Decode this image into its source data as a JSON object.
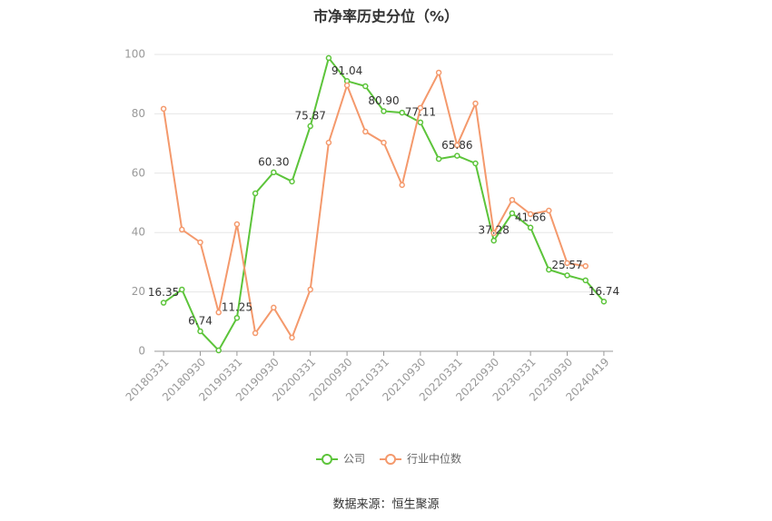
{
  "chart_data": {
    "type": "line",
    "title": "市净率历史分位（%）",
    "categories": [
      "20180331",
      null,
      "20180930",
      null,
      "20190331",
      null,
      "20190930",
      null,
      "20200331",
      null,
      "20200930",
      null,
      "20210331",
      null,
      "20210930",
      null,
      "20220331",
      null,
      "20220930",
      null,
      "20230331",
      null,
      "20230930",
      null,
      "20240419"
    ],
    "series": [
      {
        "name": "公司",
        "color": "#5cc43a",
        "values": [
          16.35,
          20.8,
          6.74,
          0.3,
          11.25,
          53.2,
          60.3,
          57.2,
          75.87,
          98.8,
          91.04,
          89.3,
          80.9,
          80.4,
          77.11,
          64.8,
          65.86,
          63.3,
          37.28,
          46.5,
          41.66,
          27.5,
          25.57,
          23.9,
          16.74
        ],
        "value_labels": [
          "16.35",
          null,
          "6.74",
          null,
          "11.25",
          null,
          "60.30",
          null,
          "75.87",
          null,
          "91.04",
          null,
          "80.90",
          null,
          "77.11",
          null,
          "65.86",
          null,
          "37.28",
          null,
          "41.66",
          null,
          "25.57",
          null,
          "16.74"
        ]
      },
      {
        "name": "行业中位数",
        "color": "#f4996c",
        "values": [
          81.7,
          41,
          36.7,
          13.1,
          42.8,
          6.1,
          14.7,
          4.6,
          20.8,
          70.3,
          89.6,
          74,
          70.3,
          56,
          82,
          93.9,
          69.4,
          83.5,
          39.8,
          51,
          46.2,
          47.4,
          29.7,
          28.7,
          null
        ]
      }
    ],
    "ylim": [
      0,
      100
    ],
    "yticks": [
      0,
      20,
      40,
      60,
      80,
      100
    ],
    "grid": true,
    "source": "数据来源：恒生聚源"
  }
}
